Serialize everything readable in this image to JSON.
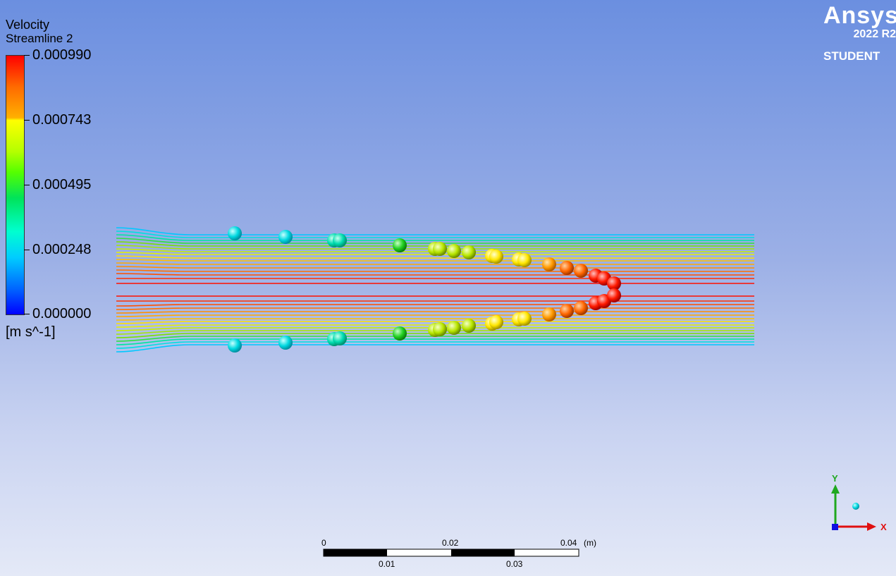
{
  "legend": {
    "title": "Velocity",
    "subtitle": "Streamline 2",
    "ticks": [
      "0.000990",
      "0.000743",
      "0.000495",
      "0.000248",
      "0.000000"
    ],
    "units": "[m s^-1]"
  },
  "logo": {
    "brand": "Ansys",
    "version": "2022 R2",
    "edition": "STUDENT"
  },
  "scale_bar": {
    "top_labels": [
      "0",
      "0.02",
      "0.04"
    ],
    "unit": "(m)",
    "bottom_labels": [
      "0.01",
      "0.03"
    ]
  },
  "triad": {
    "y": "Y",
    "x": "X"
  },
  "colors": {
    "colormap": [
      "#0000ff",
      "#00ccff",
      "#00e35a",
      "#ffff00",
      "#ff6a00",
      "#ff0000"
    ]
  }
}
